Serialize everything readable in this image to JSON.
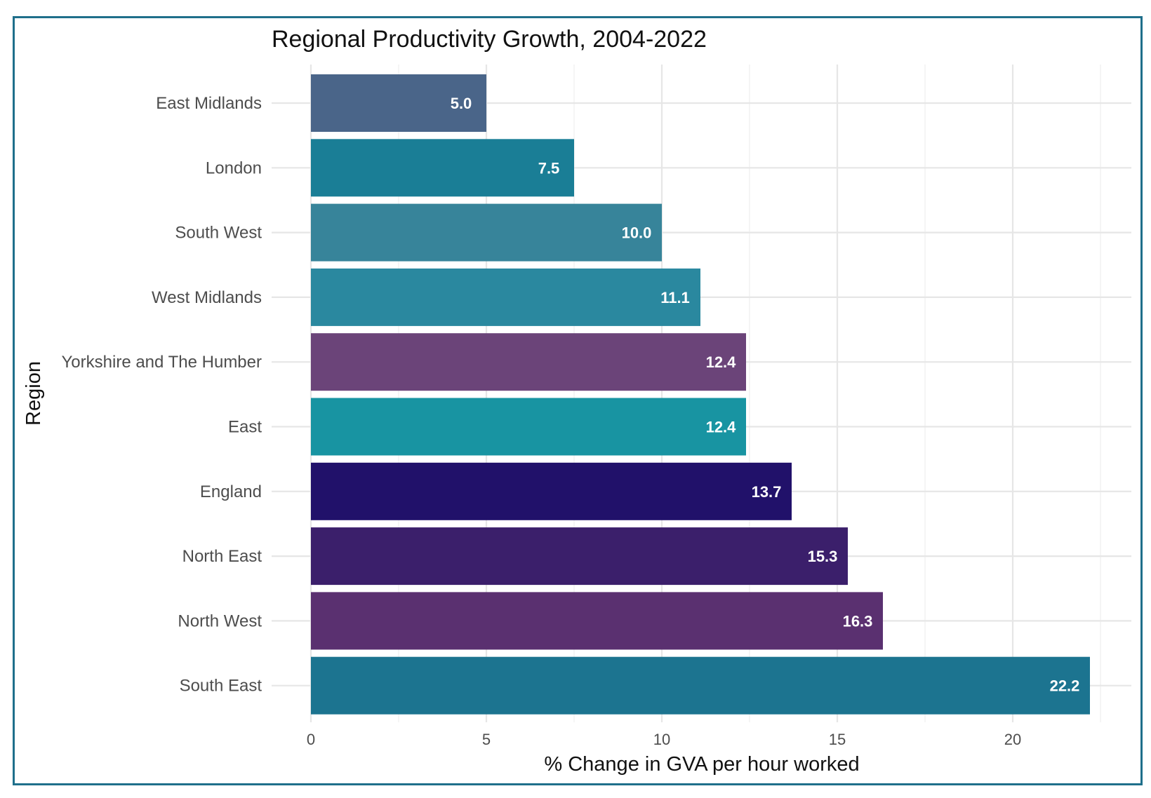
{
  "chart_data": {
    "type": "bar",
    "orientation": "horizontal",
    "title": "Regional Productivity Growth, 2004-2022",
    "xlabel": "% Change in GVA per hour worked",
    "ylabel": "Region",
    "categories": [
      "East Midlands",
      "London",
      "South West",
      "West Midlands",
      "Yorkshire and The Humber",
      "East",
      "England",
      "North East",
      "North West",
      "South East"
    ],
    "values": [
      5.0,
      7.5,
      10.0,
      11.1,
      12.4,
      12.4,
      13.7,
      15.3,
      16.3,
      22.2
    ],
    "value_labels": [
      "5.0",
      "7.5",
      "10.0",
      "11.1",
      "12.4",
      "12.4",
      "13.7",
      "15.3",
      "16.3",
      "22.2"
    ],
    "colors": [
      "#4a6589",
      "#1a7e96",
      "#37849a",
      "#2a889f",
      "#6b4479",
      "#1894a2",
      "#21116a",
      "#3b1f6b",
      "#5a3070",
      "#1c7490"
    ],
    "xlim": [
      0,
      23.1
    ],
    "xticks": [
      0,
      5,
      10,
      15,
      20
    ],
    "xtick_labels": [
      "0",
      "5",
      "10",
      "15",
      "20"
    ],
    "grid": true,
    "legend": "none"
  }
}
